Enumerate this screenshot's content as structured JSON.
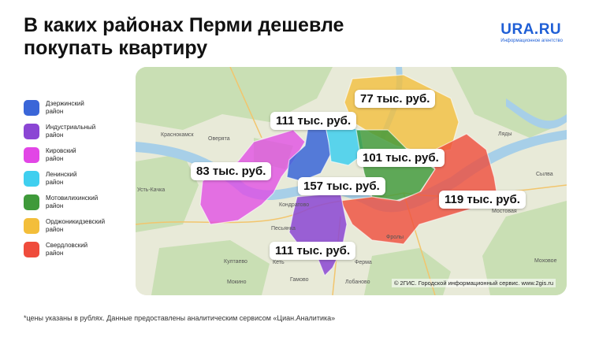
{
  "title": {
    "line1": "В каких районах Перми дешевле",
    "line2": "покупать квартиру"
  },
  "brand": {
    "name": "URA.RU",
    "tagline": "Информационное агентство"
  },
  "legend": [
    {
      "line1": "Дзержинский",
      "line2": "район",
      "color": "#3a66d8"
    },
    {
      "line1": "Индустриальный",
      "line2": "район",
      "color": "#8b46d4"
    },
    {
      "line1": "Кировский",
      "line2": "район",
      "color": "#e246e6"
    },
    {
      "line1": "Ленинский",
      "line2": "район",
      "color": "#3fcfef"
    },
    {
      "line1": "Мотовилихинский",
      "line2": "район",
      "color": "#3f9a3a"
    },
    {
      "line1": "Орджоникидзевский",
      "line2": "район",
      "color": "#f3be3a"
    },
    {
      "line1": "Свердловский",
      "line2": "район",
      "color": "#ef4c3c"
    }
  ],
  "prices": {
    "ordzhonikidzevsky": "77 тыс. руб.",
    "dzerzhinsky": "111 тыс. руб.",
    "kirovsky": "83 тыс. руб.",
    "motovilikhinsky": "101 тыс. руб.",
    "leninsky": "157 тыс. руб.",
    "sverdlovsky": "119 тыс. руб.",
    "industrialny": "111 тыс. руб."
  },
  "places": {
    "krasnokamsk": "Краснокамск",
    "overyata": "Оверята",
    "usthachka": "Усть-Качка",
    "kondratovo": "Кондратово",
    "peshkovo": "Песьянка",
    "kultaevo": "Култаево",
    "mokino": "Мокино",
    "gamovo": "Гамово",
    "lobanovo": "Лобаново",
    "ferma": "Ферма",
    "frolly": "Фролы",
    "syva": "Сылва",
    "mostovaya": "Мостовая",
    "mokhovoe": "Моховое",
    "lyady": "Ляды",
    "kets": "Кеть"
  },
  "copyright": "© 2ГИС. Городской информационный сервис. www.2gis.ru",
  "footnote": "*цены указаны в рублях. Данные предоставлены аналитическим сервисом «Циан.Аналитика»"
}
